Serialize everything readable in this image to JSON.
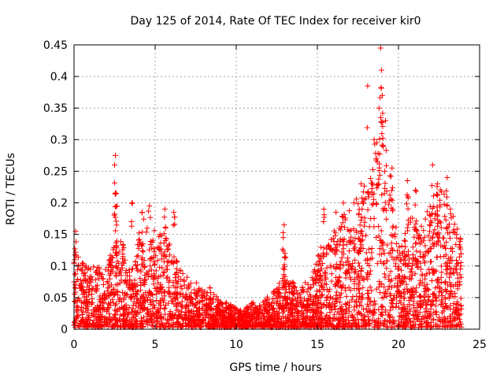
{
  "chart_data": {
    "type": "scatter",
    "title": "Day 125 of 2014, Rate Of TEC Index for receiver kir0",
    "xlabel": "GPS time / hours",
    "ylabel": "ROTI / TECUs",
    "xlim": [
      0,
      25
    ],
    "ylim": [
      0,
      0.45
    ],
    "xticks": [
      0,
      5,
      10,
      15,
      20,
      25
    ],
    "yticks": [
      0,
      0.05,
      0.1,
      0.15,
      0.2,
      0.25,
      0.3,
      0.35,
      0.4,
      0.45
    ],
    "xtick_labels": [
      "0",
      "5",
      "10",
      "15",
      "20",
      "25"
    ],
    "ytick_labels": [
      "0",
      "0.05",
      "0.1",
      "0.15",
      "0.2",
      "0.25",
      "0.3",
      "0.35",
      "0.4",
      "0.45"
    ],
    "grid": true,
    "marker": "+",
    "color": "#ff0000",
    "series": [
      {
        "name": "ROTI",
        "envelope": {
          "x": [
            0,
            0.5,
            1,
            1.5,
            2,
            2.5,
            3,
            3.5,
            4,
            4.5,
            5,
            5.5,
            6,
            6.5,
            7,
            7.5,
            8,
            8.5,
            9,
            9.5,
            10,
            10.5,
            11,
            11.5,
            12,
            12.5,
            13,
            13.5,
            14,
            14.5,
            15,
            15.5,
            16,
            16.5,
            17,
            17.5,
            18,
            18.5,
            19,
            19.5,
            20,
            20.5,
            21,
            21.5,
            22,
            22.5,
            23,
            23.5,
            23.9
          ],
          "y": [
            0.12,
            0.1,
            0.09,
            0.1,
            0.09,
            0.14,
            0.13,
            0.08,
            0.16,
            0.17,
            0.15,
            0.16,
            0.13,
            0.09,
            0.08,
            0.07,
            0.07,
            0.06,
            0.04,
            0.04,
            0.03,
            0.03,
            0.04,
            0.04,
            0.05,
            0.06,
            0.09,
            0.07,
            0.06,
            0.08,
            0.11,
            0.14,
            0.15,
            0.17,
            0.18,
            0.2,
            0.22,
            0.3,
            0.28,
            0.24,
            0.12,
            0.16,
            0.18,
            0.15,
            0.2,
            0.22,
            0.2,
            0.16,
            0.13
          ]
        },
        "spikes": [
          {
            "x": 0.1,
            "y": 0.155
          },
          {
            "x": 2.55,
            "y": 0.275
          },
          {
            "x": 2.5,
            "y": 0.26
          },
          {
            "x": 2.6,
            "y": 0.215
          },
          {
            "x": 2.65,
            "y": 0.195
          },
          {
            "x": 3.6,
            "y": 0.2
          },
          {
            "x": 4.2,
            "y": 0.185
          },
          {
            "x": 4.65,
            "y": 0.195
          },
          {
            "x": 5.6,
            "y": 0.19
          },
          {
            "x": 6.15,
            "y": 0.185
          },
          {
            "x": 12.95,
            "y": 0.165
          },
          {
            "x": 12.9,
            "y": 0.145
          },
          {
            "x": 13.0,
            "y": 0.12
          },
          {
            "x": 15.4,
            "y": 0.19
          },
          {
            "x": 16.15,
            "y": 0.185
          },
          {
            "x": 16.6,
            "y": 0.2
          },
          {
            "x": 17.7,
            "y": 0.23
          },
          {
            "x": 18.1,
            "y": 0.385
          },
          {
            "x": 18.5,
            "y": 0.3
          },
          {
            "x": 18.9,
            "y": 0.445
          },
          {
            "x": 18.95,
            "y": 0.41
          },
          {
            "x": 19.0,
            "y": 0.37
          },
          {
            "x": 18.8,
            "y": 0.35
          },
          {
            "x": 19.2,
            "y": 0.33
          },
          {
            "x": 19.6,
            "y": 0.255
          },
          {
            "x": 20.55,
            "y": 0.235
          },
          {
            "x": 21.05,
            "y": 0.22
          },
          {
            "x": 22.1,
            "y": 0.26
          },
          {
            "x": 22.4,
            "y": 0.23
          },
          {
            "x": 23.0,
            "y": 0.24
          },
          {
            "x": 23.2,
            "y": 0.19
          },
          {
            "x": 23.8,
            "y": 0.13
          }
        ]
      }
    ]
  }
}
